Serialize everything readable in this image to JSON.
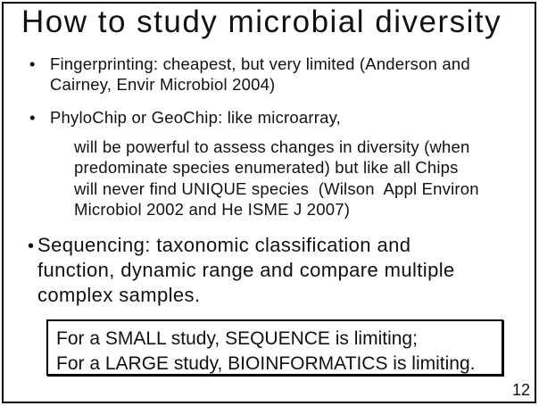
{
  "slide": {
    "title": "How to study microbial diversity",
    "bullet_char": "•",
    "bullets": [
      {
        "lines": [
          "Fingerprinting: cheapest, but very limited (Anderson and",
          "Cairney, Envir Microbiol 2004)"
        ]
      },
      {
        "lines": [
          "PhyloChip or GeoChip: like microarray,"
        ]
      }
    ],
    "sub_paragraph": {
      "lines": [
        "will be powerful to assess changes in diversity (when",
        "predominate species enumerated) but like all Chips",
        "will never find UNIQUE species  (Wilson  Appl Environ",
        "Microbiol 2002 and He ISME J 2007)"
      ]
    },
    "sequencing_bullet": {
      "lines": [
        "Sequencing: taxonomic classification and",
        "function, dynamic range and compare multiple",
        "complex samples."
      ]
    },
    "callout_box": {
      "lines": [
        "For a SMALL study, SEQUENCE is limiting;",
        "For a LARGE study, BIOINFORMATICS is limiting."
      ]
    },
    "page_number": "12",
    "colors": {
      "text": "#111111",
      "background": "#ffffff",
      "border": "#000000"
    }
  }
}
